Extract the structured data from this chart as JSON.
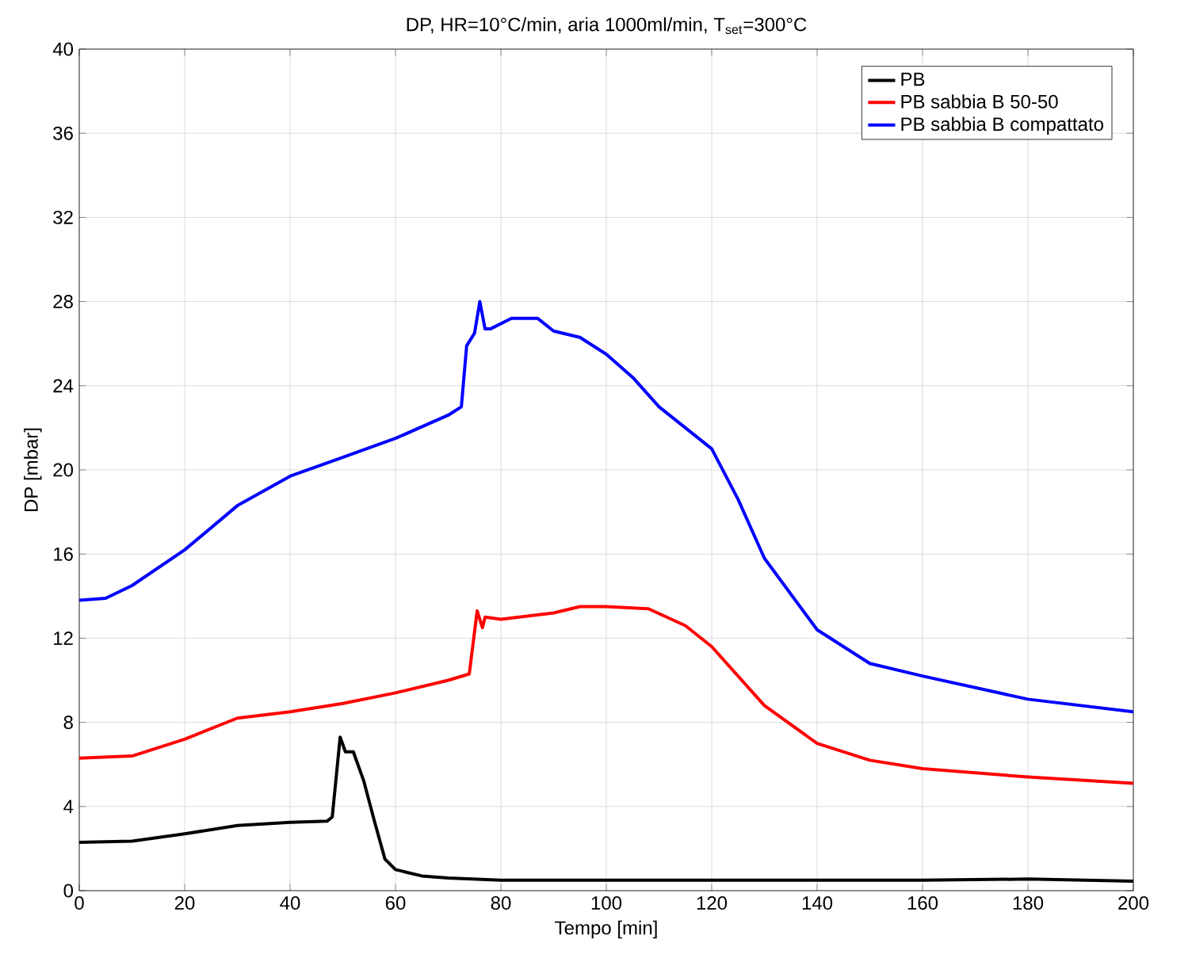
{
  "chart_data": {
    "type": "line",
    "title": "DP, HR=10°C/min, aria 1000ml/min, T$_{set}$=300°C",
    "xlabel": "Tempo [min]",
    "ylabel": "DP [mbar]",
    "xlim": [
      0,
      200
    ],
    "ylim": [
      0,
      40
    ],
    "xticks": [
      0,
      20,
      40,
      60,
      80,
      100,
      120,
      140,
      160,
      180,
      200
    ],
    "yticks": [
      0,
      4,
      8,
      12,
      16,
      20,
      24,
      28,
      32,
      36,
      40
    ],
    "grid": true,
    "legend": "top right",
    "marker": "none",
    "line_style": "solid",
    "series": [
      {
        "name": "PB",
        "color": "#000000",
        "x": [
          0,
          10,
          20,
          30,
          40,
          47,
          48,
          49.5,
          50.5,
          52,
          54,
          56,
          58,
          60,
          65,
          70,
          80,
          100,
          140,
          160,
          180,
          200
        ],
        "values": [
          2.3,
          2.35,
          2.7,
          3.1,
          3.25,
          3.3,
          3.5,
          7.3,
          6.6,
          6.6,
          5.2,
          3.3,
          1.5,
          1.0,
          0.7,
          0.6,
          0.5,
          0.5,
          0.5,
          0.5,
          0.55,
          0.45
        ]
      },
      {
        "name": "PB sabbia B 50-50",
        "color": "#ff0000",
        "x": [
          0,
          10,
          20,
          30,
          40,
          50,
          60,
          70,
          74,
          75.5,
          76.5,
          77,
          80,
          90,
          95,
          100,
          108,
          115,
          120,
          130,
          140,
          150,
          160,
          180,
          200
        ],
        "values": [
          6.3,
          6.4,
          7.2,
          8.2,
          8.5,
          8.9,
          9.4,
          10.0,
          10.3,
          13.3,
          12.5,
          13.0,
          12.9,
          13.2,
          13.5,
          13.5,
          13.4,
          12.6,
          11.6,
          8.8,
          7.0,
          6.2,
          5.8,
          5.4,
          5.1
        ]
      },
      {
        "name": "PB sabbia B compattato",
        "color": "#0000ff",
        "x": [
          0,
          5,
          10,
          20,
          30,
          40,
          50,
          60,
          70,
          72.5,
          73.5,
          75,
          76,
          77,
          78,
          82,
          87,
          90,
          95,
          100,
          105,
          110,
          120,
          125,
          130,
          140,
          150,
          160,
          180,
          200
        ],
        "values": [
          13.8,
          13.9,
          14.5,
          16.2,
          18.3,
          19.7,
          20.6,
          21.5,
          22.6,
          23.0,
          25.9,
          26.5,
          28.0,
          26.7,
          26.7,
          27.2,
          27.2,
          26.6,
          26.3,
          25.5,
          24.4,
          23.0,
          21.0,
          18.6,
          15.8,
          12.4,
          10.8,
          10.2,
          9.1,
          8.5
        ]
      }
    ]
  }
}
